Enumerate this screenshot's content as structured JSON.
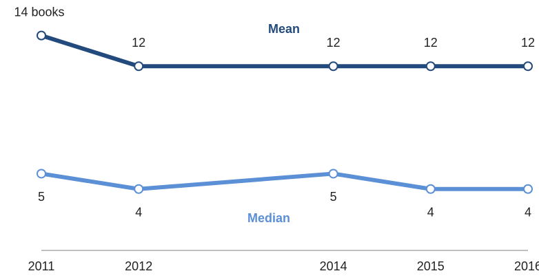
{
  "chart_data": {
    "type": "line",
    "x": [
      2011,
      2012,
      2014,
      2015,
      2016
    ],
    "xlim": [
      2011,
      2016
    ],
    "xticks": [
      2011,
      2012,
      2014,
      2015,
      2016
    ],
    "ylim": [
      0,
      16
    ],
    "series": [
      {
        "name": "Mean",
        "color": "#234a7c",
        "values": [
          14,
          12,
          12,
          12,
          12
        ],
        "value_labels": [
          "14 books",
          "12",
          "12",
          "12",
          "12"
        ]
      },
      {
        "name": "Median",
        "color": "#5b8fd6",
        "values": [
          5,
          4,
          5,
          4,
          4
        ],
        "value_labels": [
          "5",
          "4",
          "5",
          "4",
          "4"
        ]
      }
    ]
  }
}
